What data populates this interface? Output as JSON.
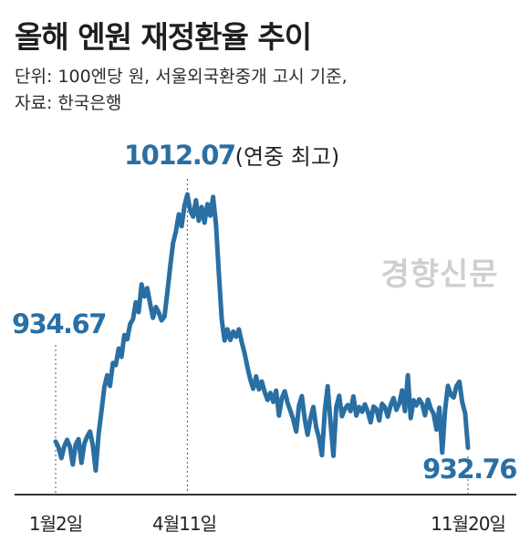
{
  "title": "올해 엔원 재정환율 추이",
  "subtitle_line1": "단위: 100엔당 원, 서울외국환중개 고시 기준,",
  "subtitle_line2": "자료: 한국은행",
  "watermark": "경향신문",
  "colors": {
    "line": "#2a6fa3",
    "axis": "#333333",
    "guide": "#555555",
    "watermark": "#cfcfcf"
  },
  "chart_data": {
    "type": "line",
    "title": "올해 엔원 재정환율 추이",
    "xlabel": "",
    "ylabel": "",
    "unit": "100엔당 원",
    "x_ticks": [
      "1월2일",
      "4월11일",
      "11월20일"
    ],
    "annotations": [
      {
        "label": "934.67",
        "x": "1월2일",
        "y": 934.67
      },
      {
        "label": "1012.07",
        "suffix": "(연중 최고)",
        "x": "4월11일",
        "y": 1012.07
      },
      {
        "label": "932.76",
        "x": "11월20일",
        "y": 932.76
      }
    ],
    "series": [
      {
        "values": [
          934.67,
          932.9,
          929.5,
          933.1,
          935.2,
          933.0,
          927.5,
          933.8,
          935.4,
          928.0,
          934.0,
          936.2,
          937.8,
          933.4,
          925.6,
          937.0,
          944.1,
          951.7,
          955.4,
          952.1,
          959.3,
          958.6,
          963.8,
          961.2,
          968.0,
          966.7,
          971.4,
          973.0,
          978.3,
          975.2,
          983.9,
          980.1,
          982.7,
          977.8,
          973.4,
          976.8,
          975.1,
          972.6,
          973.8,
          981.2,
          989.5,
          996.8,
          1000.4,
          1005.8,
          1002.1,
          1008.6,
          1012.07,
          1007.0,
          1005.1,
          1010.2,
          1003.8,
          1008.1,
          1003.2,
          1009.0,
          1005.4,
          1011.3,
          1002.6,
          987.4,
          972.9,
          966.3,
          969.8,
          966.5,
          969.1,
          967.5,
          969.8,
          965.8,
          962.3,
          957.9,
          954.1,
          951.2,
          955.1,
          951.0,
          953.5,
          950.2,
          947.7,
          949.9,
          947.1,
          950.6,
          942.8,
          948.3,
          950.4,
          946.8,
          944.2,
          941.6,
          937.8,
          946.0,
          948.9,
          941.7,
          936.8,
          942.0,
          945.5,
          939.1,
          935.7,
          930.4,
          944.3,
          952.0,
          940.8,
          930.2,
          945.4,
          949.0,
          942.6,
          944.9,
          946.1,
          944.2,
          948.8,
          942.8,
          945.5,
          944.0,
          946.3,
          944.1,
          940.7,
          945.6,
          944.9,
          941.3,
          946.5,
          945.4,
          942.5,
          946.1,
          948.3,
          944.6,
          946.6,
          950.7,
          944.2,
          955.4,
          942.0,
          947.6,
          946.0,
          947.9,
          946.4,
          942.9,
          947.8,
          945.0,
          943.4,
          938.4,
          945.3,
          931.2,
          944.5,
          952.1,
          949.3,
          948.5,
          952.0,
          953.4,
          947.0,
          943.6,
          932.76
        ]
      }
    ]
  }
}
